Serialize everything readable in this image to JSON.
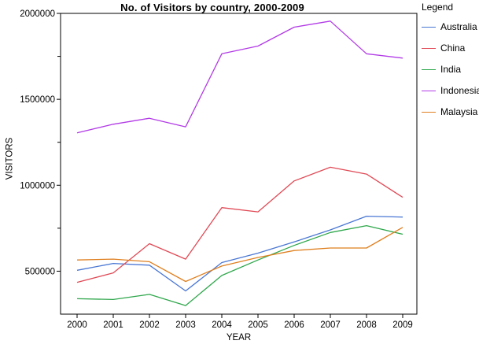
{
  "title": "No. of Visitors by country, 2000-2009",
  "chart_data": {
    "type": "line",
    "x": [
      2000,
      2001,
      2002,
      2003,
      2004,
      2005,
      2006,
      2007,
      2008,
      2009
    ],
    "xlabel": "YEAR",
    "ylabel": "VISITORS",
    "ylim": [
      250000,
      2000000
    ],
    "y_major_ticks": [
      500000,
      1000000,
      1500000,
      2000000
    ],
    "y_minor_ticks": [
      750000,
      1250000,
      1750000
    ],
    "grid": false,
    "legend_title": "Legend",
    "legend_position": "right",
    "frame": true,
    "series": [
      {
        "name": "Australia",
        "color": "#4a77d4",
        "values": [
          505000,
          545000,
          535000,
          385000,
          550000,
          605000,
          670000,
          740000,
          820000,
          815000
        ]
      },
      {
        "name": "China",
        "color": "#e04a56",
        "values": [
          435000,
          490000,
          660000,
          570000,
          870000,
          845000,
          1025000,
          1105000,
          1065000,
          930000
        ]
      },
      {
        "name": "India",
        "color": "#2fa74c",
        "values": [
          340000,
          335000,
          365000,
          300000,
          475000,
          565000,
          650000,
          725000,
          765000,
          715000
        ]
      },
      {
        "name": "Indonesia",
        "color": "#b23be6",
        "values": [
          1305000,
          1355000,
          1390000,
          1340000,
          1765000,
          1810000,
          1920000,
          1955000,
          1765000,
          1740000
        ]
      },
      {
        "name": "Malaysia",
        "color": "#df7f1f",
        "values": [
          565000,
          570000,
          555000,
          440000,
          530000,
          580000,
          620000,
          635000,
          635000,
          755000
        ]
      }
    ]
  }
}
